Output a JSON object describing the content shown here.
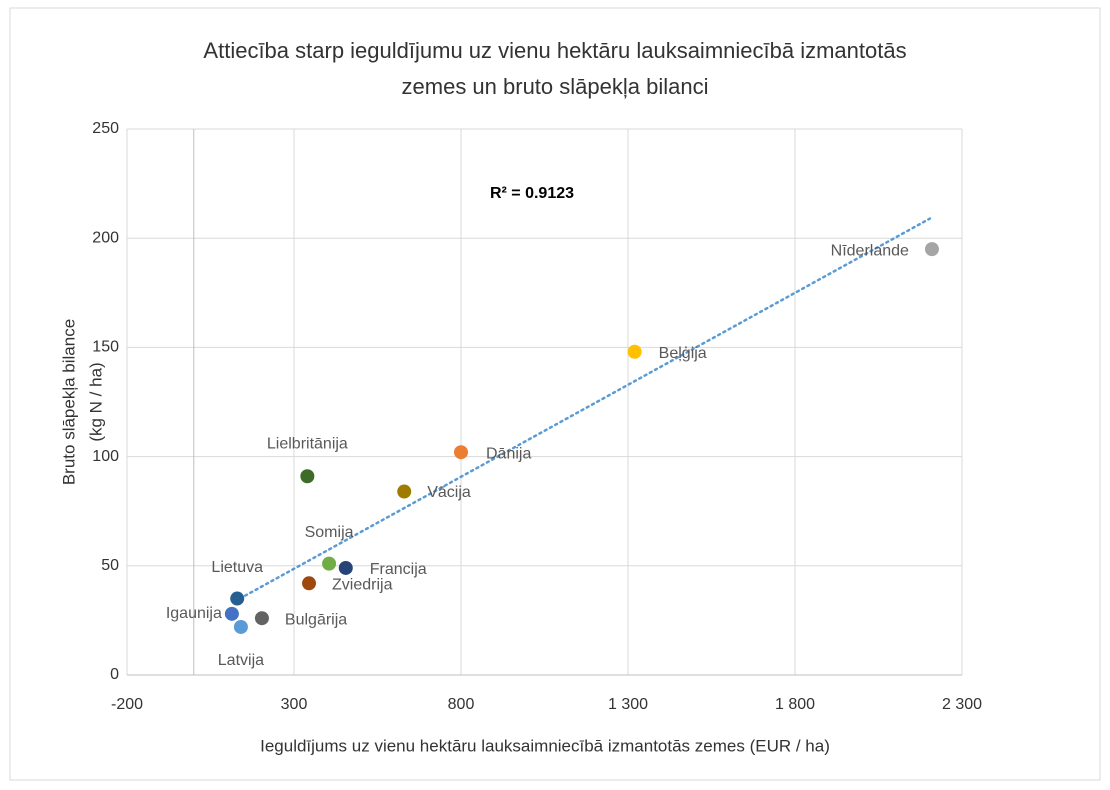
{
  "chart_data": {
    "type": "scatter",
    "title": [
      "Attiecība starp ieguldījumu uz vienu hektāru lauksaimniecībā izmantotās",
      "zemes un bruto slāpekļa bilanci"
    ],
    "x_label": "Ieguldījums uz vienu hektāru lauksaimniecībā izmantotās zemes (EUR / ha)",
    "y_label": [
      "Bruto slāpekļa bilance",
      "(kg N / ha)"
    ],
    "annotation": "R² = 0.9123",
    "xlim": [
      -200,
      2300
    ],
    "xticks": [
      -200,
      300,
      800,
      {
        "value": 1300,
        "label": "1 300"
      },
      {
        "value": 1800,
        "label": "1 800"
      },
      {
        "value": 2300,
        "label": "2 300"
      }
    ],
    "ylim": [
      0,
      250
    ],
    "yticks": [
      0,
      50,
      100,
      150,
      200,
      250
    ],
    "grid": true,
    "points": [
      {
        "name": "Nīderlande",
        "x": 2210,
        "y": 195,
        "color": "#a5a5a5"
      },
      {
        "name": "Beļģija",
        "x": 1320,
        "y": 148,
        "color": "#ffc000"
      },
      {
        "name": "Dānija",
        "x": 800,
        "y": 102,
        "color": "#ed7d31"
      },
      {
        "name": "Vācija",
        "x": 630,
        "y": 84,
        "color": "#9e7c00"
      },
      {
        "name": "Lielbritānija",
        "x": 340,
        "y": 91,
        "color": "#3e6b27"
      },
      {
        "name": "Somija",
        "x": 405,
        "y": 51,
        "color": "#70ad47"
      },
      {
        "name": "Francija",
        "x": 455,
        "y": 49,
        "color": "#264478"
      },
      {
        "name": "Zviedrija",
        "x": 345,
        "y": 42,
        "color": "#9e480e"
      },
      {
        "name": "Lietuva",
        "x": 130,
        "y": 35,
        "color": "#255e91"
      },
      {
        "name": "Igaunija",
        "x": 114,
        "y": 28,
        "color": "#4472c4"
      },
      {
        "name": "Bulgārija",
        "x": 204,
        "y": 26,
        "color": "#636363"
      },
      {
        "name": "Latvija",
        "x": 141,
        "y": 22,
        "color": "#5b9bd5"
      }
    ],
    "trendline": {
      "x": [
        138,
        2204
      ],
      "y": [
        35,
        209
      ],
      "color": "#5b9bd5"
    }
  }
}
